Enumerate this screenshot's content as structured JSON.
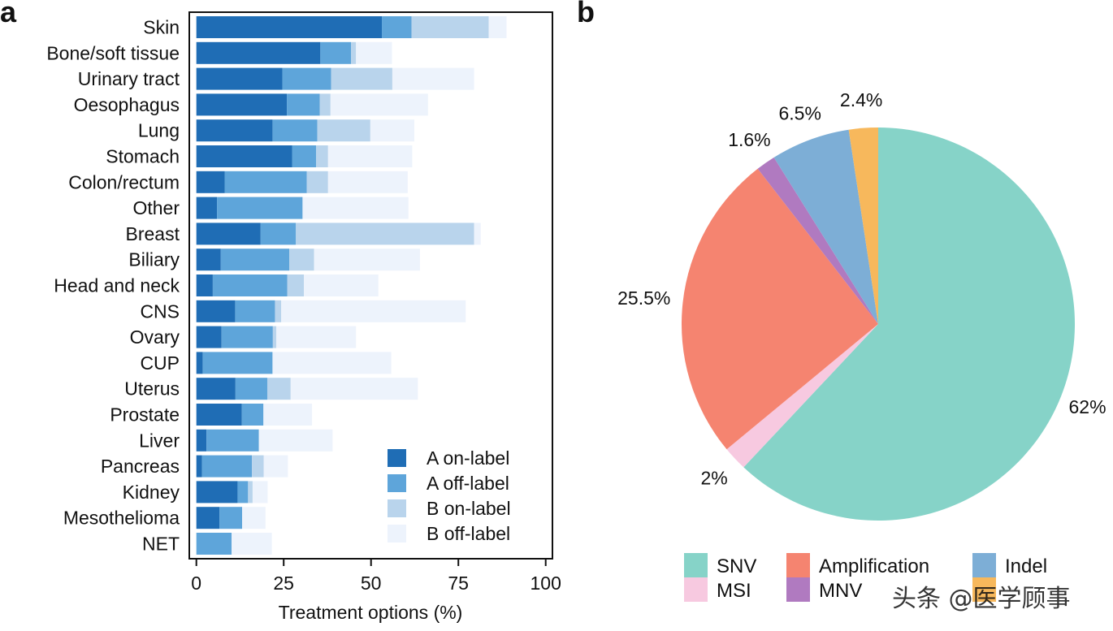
{
  "chart_data": [
    {
      "panel": "a",
      "type": "bar",
      "orientation": "horizontal",
      "stacked": true,
      "xlabel": "Treatment options (%)",
      "xlim": [
        0,
        100
      ],
      "xticks": [
        0,
        25,
        50,
        75,
        100
      ],
      "legend_position": "bottom-right",
      "categories": [
        "Skin",
        "Bone/soft tissue",
        "Urinary tract",
        "Oesophagus",
        "Lung",
        "Stomach",
        "Colon/rectum",
        "Other",
        "Breast",
        "Biliary",
        "Head and neck",
        "CNS",
        "Ovary",
        "CUP",
        "Uterus",
        "Prostate",
        "Liver",
        "Pancreas",
        "Kidney",
        "Mesothelioma",
        "NET"
      ],
      "series": [
        {
          "name": "A on-label",
          "color": "#1f6db5",
          "values": [
            53.1,
            35.5,
            24.6,
            25.9,
            21.8,
            27.4,
            8.1,
            5.9,
            18.4,
            7.0,
            4.7,
            11.1,
            7.2,
            1.8,
            11.2,
            13.0,
            2.9,
            1.6,
            11.8,
            6.6,
            0
          ]
        },
        {
          "name": "A off-label",
          "color": "#5ea5da",
          "values": [
            8.5,
            8.8,
            14.0,
            9.4,
            12.8,
            6.9,
            23.5,
            24.5,
            10.1,
            19.6,
            21.3,
            11.4,
            14.7,
            20.0,
            9.1,
            6.2,
            15.0,
            14.3,
            3.0,
            6.5,
            10.1
          ]
        },
        {
          "name": "B on-label",
          "color": "#b9d4ec",
          "values": [
            22.1,
            1.4,
            17.5,
            3.1,
            15.2,
            3.4,
            6.1,
            0,
            51.0,
            7.1,
            4.8,
            1.8,
            1.0,
            0,
            6.7,
            0,
            0,
            3.4,
            1.3,
            0,
            0
          ]
        },
        {
          "name": "B off-label",
          "color": "#edf3fc",
          "values": [
            5.1,
            10.3,
            23.4,
            27.9,
            12.6,
            24.1,
            22.8,
            30.3,
            1.9,
            30.3,
            21.3,
            52.8,
            22.8,
            34.0,
            36.4,
            13.9,
            21.1,
            6.9,
            4.3,
            6.7,
            11.5
          ]
        }
      ]
    },
    {
      "panel": "b",
      "type": "pie",
      "start": "top",
      "direction": "clockwise",
      "slices": [
        {
          "name": "SNV",
          "value": 62,
          "label": "62%",
          "color": "#86d3c8"
        },
        {
          "name": "MSI",
          "value": 2,
          "label": "2%",
          "color": "#f7c9e0"
        },
        {
          "name": "Amplification",
          "value": 25.5,
          "label": "25.5%",
          "color": "#f58470"
        },
        {
          "name": "MNV",
          "value": 1.6,
          "label": "1.6%",
          "color": "#b07ac0"
        },
        {
          "name": "Indel",
          "value": 6.5,
          "label": "6.5%",
          "color": "#7daed6"
        },
        {
          "name": "",
          "value": 2.4,
          "label": "2.4%",
          "color": "#f7b85c"
        }
      ],
      "legend_position": "bottom",
      "legend": [
        "SNV",
        "Amplification",
        "Indel",
        "MSI",
        "MNV"
      ]
    }
  ],
  "panel_labels": [
    "a",
    "b"
  ],
  "watermark": "头条 @医学顾事"
}
